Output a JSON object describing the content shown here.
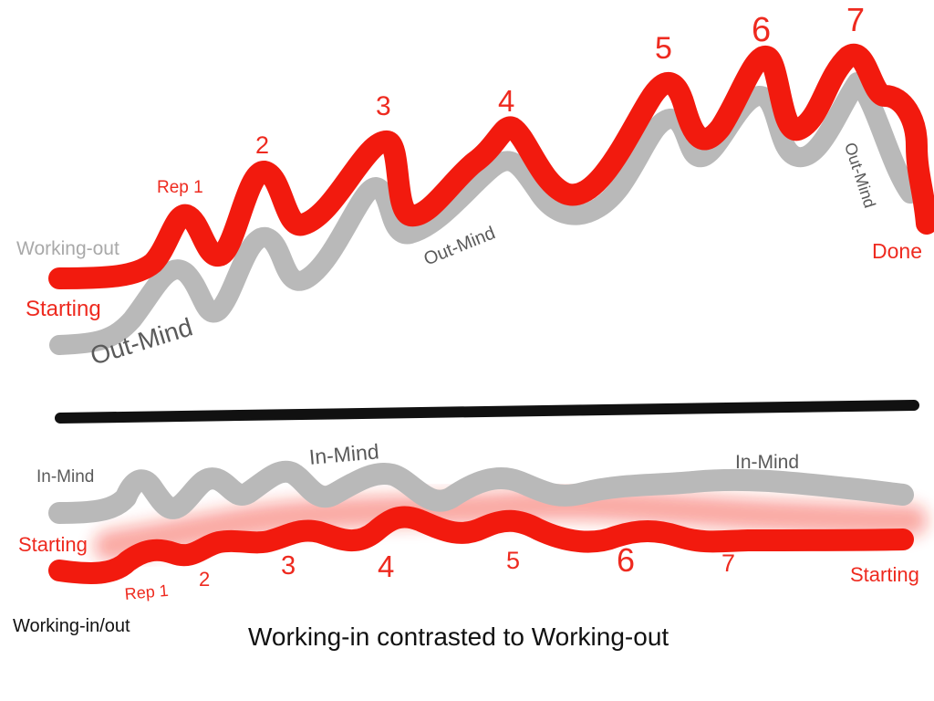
{
  "colors": {
    "working": "#f21a0e",
    "mind": "#b9b9b9",
    "divider": "#111111",
    "text_red": "#ee2a1f",
    "text_gray": "#a9a9a9",
    "text_dark": "#5a5a5a"
  },
  "top": {
    "working_out": "Working-out",
    "starting": "Starting",
    "out_mind_1": "Out-Mind",
    "out_mind_2": "Out-Mind",
    "out_mind_3": "Out-Mind",
    "done": "Done",
    "rep1": "Rep 1",
    "n2": "2",
    "n3": "3",
    "n4": "4",
    "n5": "5",
    "n6": "6",
    "n7": "7"
  },
  "bottom": {
    "in_mind_1": "In-Mind",
    "in_mind_2": "In-Mind",
    "in_mind_3": "In-Mind",
    "starting_left": "Starting",
    "starting_right": "Starting",
    "rep1": "Rep 1",
    "n2": "2",
    "n3": "3",
    "n4": "4",
    "n5": "5",
    "n6": "6",
    "n7": "7",
    "working_in_out": "Working-in/out"
  },
  "caption": "Working-in contrasted to Working-out"
}
